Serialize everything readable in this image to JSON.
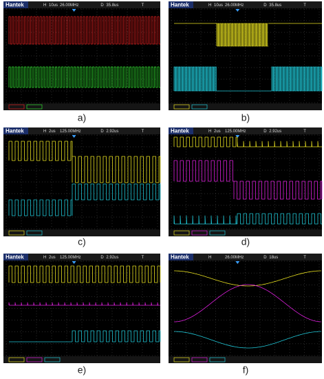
{
  "panels": [
    {
      "label": "a)",
      "brand": "Hantek",
      "horizontal": "H",
      "timebase": "10us",
      "rate": "26.00MHz",
      "delay_key": "D",
      "delay": "35.8us",
      "trigger": "T"
    },
    {
      "label": "b)",
      "brand": "Hantek",
      "horizontal": "H",
      "timebase": "10us",
      "rate": "26.00MHz",
      "delay_key": "D",
      "delay": "35.8us",
      "trigger": "T"
    },
    {
      "label": "c)",
      "brand": "Hantek",
      "horizontal": "H",
      "timebase": "2us",
      "rate": "125.00MHz",
      "delay_key": "D",
      "delay": "2.92us",
      "trigger": "T"
    },
    {
      "label": "d)",
      "brand": "Hantek",
      "horizontal": "H",
      "timebase": "2us",
      "rate": "125.00MHz",
      "delay_key": "D",
      "delay": "2.92us",
      "trigger": "T"
    },
    {
      "label": "e)",
      "brand": "Hantek",
      "horizontal": "H",
      "timebase": "2us",
      "rate": "125.00MHz",
      "delay_key": "D",
      "delay": "2.92us",
      "trigger": "T"
    },
    {
      "label": "f)",
      "brand": "Hantek",
      "horizontal": "H",
      "timebase": "",
      "rate": "26.00MHz",
      "delay_key": "D",
      "delay": "18us",
      "trigger": "T"
    }
  ]
}
